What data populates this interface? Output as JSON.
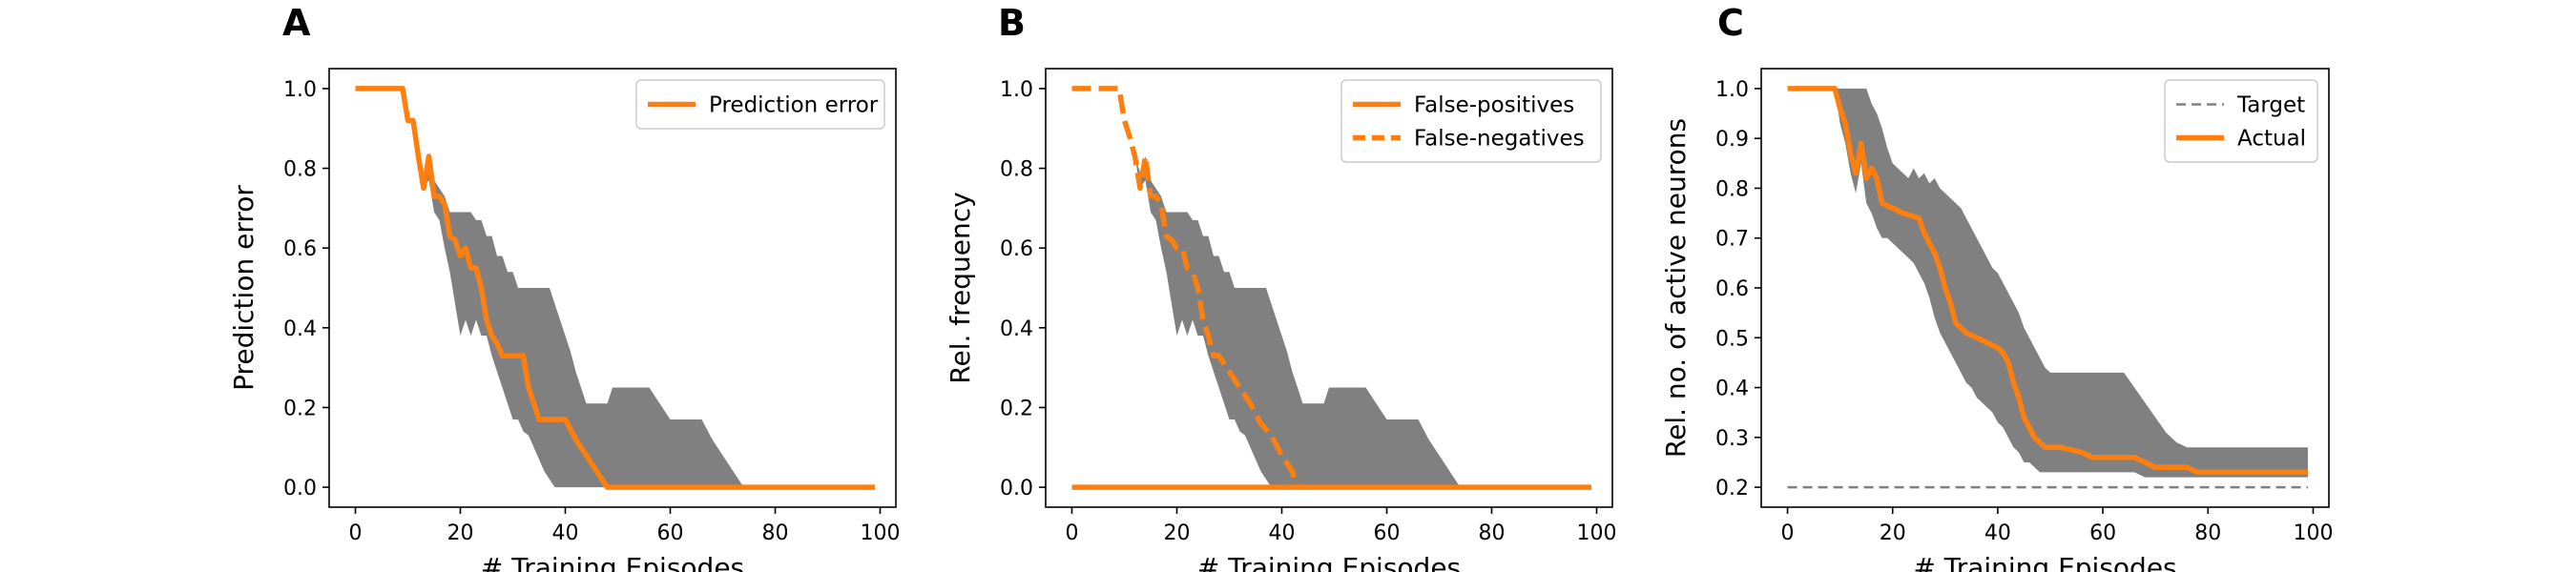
{
  "chart_data": [
    {
      "panel": "A",
      "type": "line",
      "xlabel": "# Training Episodes",
      "ylabel": "Prediction error",
      "xlim": [
        -5,
        103
      ],
      "ylim": [
        -0.05,
        1.05
      ],
      "xticks": [
        0,
        20,
        40,
        60,
        80,
        100
      ],
      "xtick_labels": [
        "0",
        "20",
        "40",
        "60",
        "80",
        "100"
      ],
      "yticks": [
        0.0,
        0.2,
        0.4,
        0.6,
        0.8,
        1.0
      ],
      "ytick_labels": [
        "0.0",
        "0.2",
        "0.4",
        "0.6",
        "0.8",
        "1.0"
      ],
      "legend_position": "top-right",
      "series": [
        {
          "name": "Prediction error",
          "color": "#ff7f0e",
          "style": "solid",
          "points": [
            [
              0,
              1.0
            ],
            [
              9,
              1.0
            ],
            [
              10,
              0.92
            ],
            [
              11,
              0.92
            ],
            [
              12,
              0.83
            ],
            [
              13,
              0.75
            ],
            [
              14,
              0.83
            ],
            [
              15,
              0.73
            ],
            [
              16,
              0.73
            ],
            [
              17,
              0.71
            ],
            [
              18,
              0.63
            ],
            [
              19,
              0.62
            ],
            [
              20,
              0.58
            ],
            [
              21,
              0.6
            ],
            [
              22,
              0.55
            ],
            [
              23,
              0.55
            ],
            [
              24,
              0.5
            ],
            [
              25,
              0.42
            ],
            [
              26,
              0.38
            ],
            [
              27,
              0.36
            ],
            [
              28,
              0.33
            ],
            [
              32,
              0.33
            ],
            [
              33,
              0.25
            ],
            [
              34,
              0.21
            ],
            [
              35,
              0.17
            ],
            [
              40,
              0.17
            ],
            [
              42,
              0.12
            ],
            [
              44,
              0.08
            ],
            [
              46,
              0.04
            ],
            [
              48,
              0.0
            ],
            [
              99,
              0.0
            ]
          ]
        }
      ],
      "band": {
        "color": "#808080",
        "x": [
          0,
          9,
          10,
          11,
          12,
          13,
          14,
          15,
          16,
          17,
          18,
          19,
          20,
          21,
          22,
          23,
          24,
          25,
          26,
          27,
          28,
          29,
          30,
          31,
          32,
          33,
          34,
          35,
          36,
          37,
          38,
          39,
          40,
          41,
          42,
          43,
          44,
          45,
          46,
          47,
          48,
          49,
          50,
          52,
          54,
          56,
          58,
          60,
          62,
          64,
          66,
          68,
          70,
          72,
          74,
          76,
          78,
          80,
          99
        ],
        "upper": [
          1.0,
          1.0,
          0.92,
          0.92,
          0.83,
          0.79,
          0.83,
          0.77,
          0.75,
          0.73,
          0.69,
          0.69,
          0.69,
          0.69,
          0.69,
          0.67,
          0.67,
          0.63,
          0.63,
          0.58,
          0.58,
          0.54,
          0.54,
          0.5,
          0.5,
          0.5,
          0.5,
          0.5,
          0.5,
          0.5,
          0.46,
          0.42,
          0.38,
          0.34,
          0.29,
          0.25,
          0.21,
          0.21,
          0.21,
          0.21,
          0.21,
          0.25,
          0.25,
          0.25,
          0.25,
          0.25,
          0.21,
          0.17,
          0.17,
          0.17,
          0.17,
          0.12,
          0.08,
          0.04,
          0.0,
          0.0,
          0.0,
          0.0,
          0.0
        ],
        "lower": [
          1.0,
          1.0,
          0.92,
          0.92,
          0.83,
          0.75,
          0.77,
          0.69,
          0.67,
          0.6,
          0.54,
          0.46,
          0.38,
          0.42,
          0.38,
          0.42,
          0.38,
          0.38,
          0.33,
          0.29,
          0.25,
          0.21,
          0.17,
          0.17,
          0.14,
          0.13,
          0.1,
          0.07,
          0.04,
          0.02,
          0.0,
          0.0,
          0.0,
          0.0,
          0.0,
          0.0,
          0.0,
          0.0,
          0.0,
          0.0,
          0.0,
          0.0,
          0.0,
          0.0,
          0.0,
          0.0,
          0.0,
          0.0,
          0.0,
          0.0,
          0.0,
          0.0,
          0.0,
          0.0,
          0.0,
          0.0,
          0.0,
          0.0,
          0.0
        ]
      }
    },
    {
      "panel": "B",
      "type": "line",
      "xlabel": "# Training Episodes",
      "ylabel": "Rel. frequency",
      "xlim": [
        -5,
        103
      ],
      "ylim": [
        -0.05,
        1.05
      ],
      "xticks": [
        0,
        20,
        40,
        60,
        80,
        100
      ],
      "xtick_labels": [
        "0",
        "20",
        "40",
        "60",
        "80",
        "100"
      ],
      "yticks": [
        0.0,
        0.2,
        0.4,
        0.6,
        0.8,
        1.0
      ],
      "ytick_labels": [
        "0.0",
        "0.2",
        "0.4",
        "0.6",
        "0.8",
        "1.0"
      ],
      "legend_position": "top-right",
      "series": [
        {
          "name": "False-positives",
          "color": "#ff7f0e",
          "style": "solid",
          "points": [
            [
              0,
              0.0
            ],
            [
              99,
              0.0
            ]
          ]
        },
        {
          "name": "False-negatives",
          "color": "#ff7f0e",
          "style": "dashed",
          "points": [
            [
              0,
              1.0
            ],
            [
              9,
              1.0
            ],
            [
              10,
              0.92
            ],
            [
              11,
              0.88
            ],
            [
              12,
              0.83
            ],
            [
              13,
              0.75
            ],
            [
              14,
              0.83
            ],
            [
              15,
              0.73
            ],
            [
              16,
              0.73
            ],
            [
              17,
              0.71
            ],
            [
              18,
              0.63
            ],
            [
              19,
              0.62
            ],
            [
              20,
              0.6
            ],
            [
              21,
              0.6
            ],
            [
              22,
              0.55
            ],
            [
              23,
              0.54
            ],
            [
              24,
              0.5
            ],
            [
              25,
              0.42
            ],
            [
              26,
              0.38
            ],
            [
              27,
              0.33
            ],
            [
              28,
              0.33
            ],
            [
              30,
              0.29
            ],
            [
              32,
              0.25
            ],
            [
              34,
              0.21
            ],
            [
              36,
              0.16
            ],
            [
              38,
              0.13
            ],
            [
              40,
              0.08
            ],
            [
              42,
              0.04
            ],
            [
              43,
              0.0
            ]
          ]
        }
      ],
      "band": {
        "color": "#808080",
        "x": [
          0,
          9,
          10,
          11,
          12,
          13,
          14,
          15,
          16,
          17,
          18,
          19,
          20,
          21,
          22,
          23,
          24,
          25,
          26,
          27,
          28,
          29,
          30,
          31,
          32,
          33,
          34,
          35,
          36,
          37,
          38,
          39,
          40,
          41,
          42,
          43,
          44,
          45,
          46,
          47,
          48,
          49,
          50,
          52,
          54,
          56,
          58,
          60,
          62,
          64,
          66,
          68,
          70,
          72,
          74,
          76,
          78,
          80,
          99
        ],
        "upper": [
          1.0,
          1.0,
          0.92,
          0.92,
          0.83,
          0.79,
          0.83,
          0.77,
          0.75,
          0.73,
          0.69,
          0.69,
          0.69,
          0.69,
          0.69,
          0.67,
          0.67,
          0.63,
          0.63,
          0.58,
          0.58,
          0.54,
          0.54,
          0.5,
          0.5,
          0.5,
          0.5,
          0.5,
          0.5,
          0.5,
          0.46,
          0.42,
          0.38,
          0.34,
          0.29,
          0.25,
          0.21,
          0.21,
          0.21,
          0.21,
          0.21,
          0.25,
          0.25,
          0.25,
          0.25,
          0.25,
          0.21,
          0.17,
          0.17,
          0.17,
          0.17,
          0.12,
          0.08,
          0.04,
          0.0,
          0.0,
          0.0,
          0.0,
          0.0
        ],
        "lower": [
          1.0,
          1.0,
          0.92,
          0.92,
          0.83,
          0.75,
          0.77,
          0.69,
          0.67,
          0.6,
          0.54,
          0.46,
          0.38,
          0.42,
          0.38,
          0.42,
          0.38,
          0.38,
          0.33,
          0.29,
          0.25,
          0.21,
          0.17,
          0.17,
          0.14,
          0.13,
          0.1,
          0.07,
          0.04,
          0.02,
          0.0,
          0.0,
          0.0,
          0.0,
          0.0,
          0.0,
          0.0,
          0.0,
          0.0,
          0.0,
          0.0,
          0.0,
          0.0,
          0.0,
          0.0,
          0.0,
          0.0,
          0.0,
          0.0,
          0.0,
          0.0,
          0.0,
          0.0,
          0.0,
          0.0,
          0.0,
          0.0,
          0.0,
          0.0
        ]
      }
    },
    {
      "panel": "C",
      "type": "line",
      "xlabel": "# Training Episodes",
      "ylabel": "Rel. no. of active neurons",
      "xlim": [
        -5,
        103
      ],
      "ylim": [
        0.16,
        1.04
      ],
      "xticks": [
        0,
        20,
        40,
        60,
        80,
        100
      ],
      "xtick_labels": [
        "0",
        "20",
        "40",
        "60",
        "80",
        "100"
      ],
      "yticks": [
        0.2,
        0.3,
        0.4,
        0.5,
        0.6,
        0.7,
        0.8,
        0.9,
        1.0
      ],
      "ytick_labels": [
        "0.2",
        "0.3",
        "0.4",
        "0.5",
        "0.6",
        "0.7",
        "0.8",
        "0.9",
        "1.0"
      ],
      "legend_position": "top-right",
      "series": [
        {
          "name": "Target",
          "color": "#808080",
          "style": "dashed",
          "points": [
            [
              0,
              0.2
            ],
            [
              99,
              0.2
            ]
          ]
        },
        {
          "name": "Actual",
          "color": "#ff7f0e",
          "style": "solid",
          "points": [
            [
              0,
              1.0
            ],
            [
              9,
              1.0
            ],
            [
              10,
              0.96
            ],
            [
              11,
              0.93
            ],
            [
              12,
              0.87
            ],
            [
              13,
              0.83
            ],
            [
              14,
              0.89
            ],
            [
              15,
              0.82
            ],
            [
              16,
              0.84
            ],
            [
              17,
              0.82
            ],
            [
              18,
              0.77
            ],
            [
              20,
              0.76
            ],
            [
              22,
              0.75
            ],
            [
              25,
              0.74
            ],
            [
              26,
              0.71
            ],
            [
              28,
              0.67
            ],
            [
              29,
              0.64
            ],
            [
              30,
              0.6
            ],
            [
              31,
              0.57
            ],
            [
              32,
              0.53
            ],
            [
              34,
              0.51
            ],
            [
              36,
              0.5
            ],
            [
              38,
              0.49
            ],
            [
              40,
              0.48
            ],
            [
              41,
              0.47
            ],
            [
              42,
              0.45
            ],
            [
              43,
              0.41
            ],
            [
              44,
              0.38
            ],
            [
              45,
              0.34
            ],
            [
              47,
              0.3
            ],
            [
              49,
              0.28
            ],
            [
              52,
              0.28
            ],
            [
              56,
              0.27
            ],
            [
              58,
              0.26
            ],
            [
              66,
              0.26
            ],
            [
              70,
              0.24
            ],
            [
              74,
              0.24
            ],
            [
              76,
              0.24
            ],
            [
              78,
              0.23
            ],
            [
              99,
              0.23
            ]
          ]
        }
      ],
      "band": {
        "color": "#808080",
        "x": [
          0,
          9,
          10,
          11,
          12,
          13,
          14,
          15,
          16,
          17,
          18,
          19,
          20,
          21,
          22,
          23,
          24,
          25,
          26,
          27,
          28,
          29,
          30,
          31,
          32,
          33,
          34,
          35,
          36,
          37,
          38,
          39,
          40,
          41,
          42,
          43,
          44,
          45,
          46,
          47,
          48,
          49,
          50,
          52,
          54,
          56,
          58,
          60,
          62,
          64,
          66,
          68,
          70,
          72,
          74,
          76,
          78,
          80,
          99
        ],
        "upper": [
          1.0,
          1.0,
          1.0,
          1.0,
          1.0,
          1.0,
          1.0,
          1.0,
          0.97,
          0.95,
          0.92,
          0.88,
          0.85,
          0.84,
          0.83,
          0.82,
          0.84,
          0.82,
          0.83,
          0.81,
          0.82,
          0.8,
          0.79,
          0.78,
          0.77,
          0.76,
          0.74,
          0.72,
          0.7,
          0.68,
          0.66,
          0.64,
          0.63,
          0.61,
          0.59,
          0.57,
          0.55,
          0.52,
          0.5,
          0.48,
          0.46,
          0.44,
          0.43,
          0.43,
          0.43,
          0.43,
          0.43,
          0.43,
          0.43,
          0.43,
          0.4,
          0.37,
          0.34,
          0.31,
          0.29,
          0.28,
          0.28,
          0.28,
          0.28
        ],
        "lower": [
          1.0,
          1.0,
          0.93,
          0.89,
          0.83,
          0.79,
          0.85,
          0.77,
          0.75,
          0.72,
          0.7,
          0.7,
          0.69,
          0.68,
          0.67,
          0.66,
          0.65,
          0.63,
          0.61,
          0.58,
          0.54,
          0.51,
          0.49,
          0.47,
          0.45,
          0.43,
          0.41,
          0.4,
          0.38,
          0.37,
          0.36,
          0.35,
          0.33,
          0.32,
          0.3,
          0.28,
          0.27,
          0.25,
          0.25,
          0.24,
          0.23,
          0.23,
          0.23,
          0.23,
          0.23,
          0.23,
          0.23,
          0.23,
          0.23,
          0.23,
          0.23,
          0.22,
          0.22,
          0.22,
          0.22,
          0.22,
          0.22,
          0.22,
          0.22
        ]
      }
    }
  ]
}
